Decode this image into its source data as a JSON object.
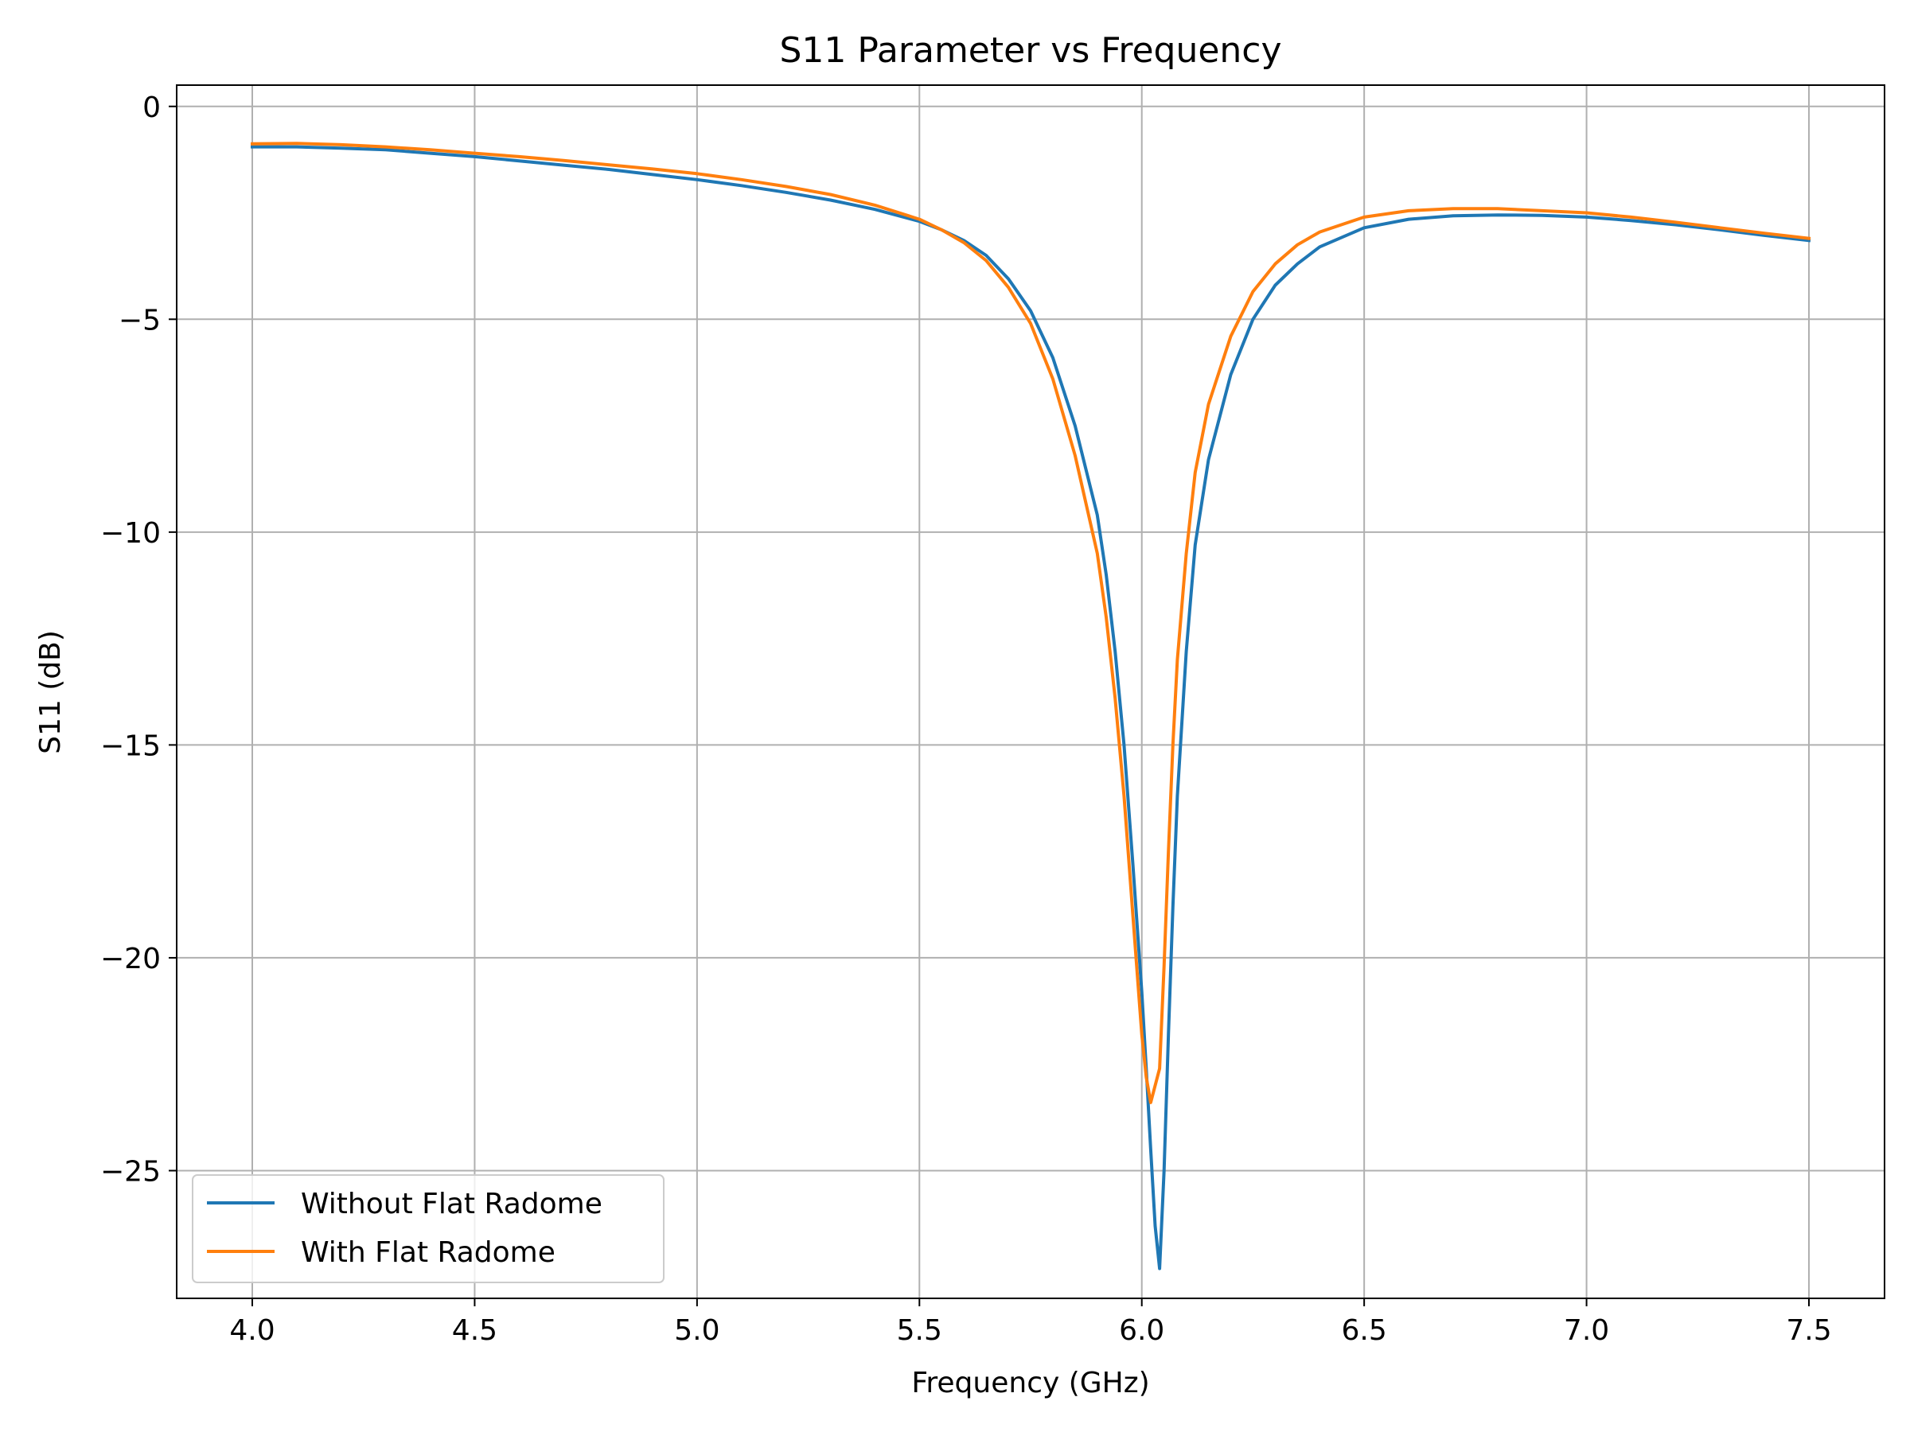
{
  "chart_data": {
    "type": "line",
    "title": "S11 Parameter vs Frequency",
    "xlabel": "Frequency (GHz)",
    "ylabel": "S11 (dB)",
    "xlim": [
      3.83,
      7.67
    ],
    "ylim": [
      -28.0,
      0.5
    ],
    "xticks": [
      4.0,
      4.5,
      5.0,
      5.5,
      6.0,
      6.5,
      7.0,
      7.5
    ],
    "xtick_labels": [
      "4.0",
      "4.5",
      "5.0",
      "5.5",
      "6.0",
      "6.5",
      "7.0",
      "7.5"
    ],
    "yticks": [
      0,
      -5,
      -10,
      -15,
      -20,
      -25
    ],
    "ytick_labels": [
      "0",
      "−5",
      "−10",
      "−15",
      "−20",
      "−25"
    ],
    "grid": true,
    "legend_position": "lower-left",
    "series": [
      {
        "name": "Without Flat Radome",
        "color": "#1f77b4",
        "x": [
          4.0,
          4.1,
          4.2,
          4.3,
          4.4,
          4.5,
          4.6,
          4.7,
          4.8,
          4.9,
          5.0,
          5.1,
          5.2,
          5.3,
          5.4,
          5.5,
          5.55,
          5.6,
          5.65,
          5.7,
          5.75,
          5.8,
          5.85,
          5.9,
          5.92,
          5.94,
          5.96,
          5.98,
          6.0,
          6.01,
          6.02,
          6.03,
          6.04,
          6.05,
          6.06,
          6.07,
          6.08,
          6.1,
          6.12,
          6.15,
          6.2,
          6.25,
          6.3,
          6.35,
          6.4,
          6.5,
          6.6,
          6.7,
          6.8,
          6.9,
          7.0,
          7.1,
          7.2,
          7.3,
          7.4,
          7.5
        ],
        "y": [
          -0.95,
          -0.95,
          -0.98,
          -1.02,
          -1.1,
          -1.18,
          -1.28,
          -1.38,
          -1.48,
          -1.6,
          -1.72,
          -1.86,
          -2.02,
          -2.2,
          -2.42,
          -2.7,
          -2.9,
          -3.15,
          -3.5,
          -4.05,
          -4.8,
          -5.9,
          -7.5,
          -9.6,
          -11.0,
          -12.8,
          -15.0,
          -17.8,
          -20.8,
          -22.6,
          -24.5,
          -26.3,
          -27.3,
          -25.0,
          -21.8,
          -18.8,
          -16.2,
          -12.8,
          -10.3,
          -8.3,
          -6.3,
          -5.0,
          -4.2,
          -3.7,
          -3.3,
          -2.85,
          -2.65,
          -2.57,
          -2.55,
          -2.56,
          -2.6,
          -2.68,
          -2.78,
          -2.9,
          -3.03,
          -3.15
        ]
      },
      {
        "name": "With Flat Radome",
        "color": "#ff7f0e",
        "x": [
          4.0,
          4.1,
          4.2,
          4.3,
          4.4,
          4.5,
          4.6,
          4.7,
          4.8,
          4.9,
          5.0,
          5.1,
          5.2,
          5.3,
          5.4,
          5.5,
          5.55,
          5.6,
          5.65,
          5.7,
          5.75,
          5.8,
          5.85,
          5.9,
          5.92,
          5.94,
          5.96,
          5.98,
          6.0,
          6.01,
          6.02,
          6.03,
          6.04,
          6.05,
          6.06,
          6.07,
          6.08,
          6.1,
          6.12,
          6.15,
          6.2,
          6.25,
          6.3,
          6.35,
          6.4,
          6.5,
          6.6,
          6.7,
          6.8,
          6.9,
          7.0,
          7.1,
          7.2,
          7.3,
          7.4,
          7.5
        ],
        "y": [
          -0.88,
          -0.87,
          -0.9,
          -0.95,
          -1.02,
          -1.1,
          -1.18,
          -1.27,
          -1.37,
          -1.47,
          -1.58,
          -1.72,
          -1.88,
          -2.07,
          -2.32,
          -2.65,
          -2.9,
          -3.2,
          -3.62,
          -4.25,
          -5.1,
          -6.4,
          -8.2,
          -10.5,
          -12.0,
          -13.9,
          -16.2,
          -19.0,
          -21.8,
          -22.8,
          -23.4,
          -23.0,
          -22.6,
          -20.2,
          -17.5,
          -15.0,
          -13.0,
          -10.5,
          -8.6,
          -7.0,
          -5.4,
          -4.35,
          -3.7,
          -3.25,
          -2.95,
          -2.6,
          -2.45,
          -2.4,
          -2.4,
          -2.45,
          -2.5,
          -2.6,
          -2.72,
          -2.85,
          -2.98,
          -3.1
        ]
      }
    ]
  }
}
